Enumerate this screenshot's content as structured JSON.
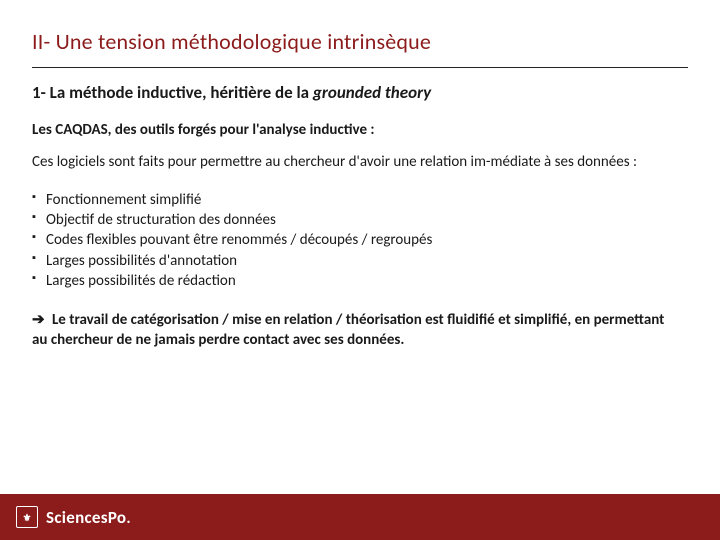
{
  "colors": {
    "accent": "#8c1b1b",
    "text": "#1a1a1a",
    "rule": "#222222",
    "background": "#ffffff",
    "footer_text": "#ffffff"
  },
  "title": "II- Une tension méthodologique intrinsèque",
  "subtitle_prefix": "1- La méthode inductive, héritière de la ",
  "subtitle_italic": "grounded theory",
  "section_label": "Les CAQDAS, des outils forgés pour l'analyse inductive :",
  "paragraph": "Ces logiciels sont faits pour permettre au chercheur d'avoir une relation im-médiate à ses données :",
  "bullets": [
    "Fonctionnement simplifié",
    "Objectif de structuration des données",
    "Codes flexibles pouvant être renommés / découpés / regroupés",
    "Larges possibilités d'annotation",
    "Larges possibilités de rédaction"
  ],
  "conclusion_arrow": "➔",
  "conclusion": " Le travail de catégorisation / mise en relation / théorisation est fluidifié et simplifié, en permettant au chercheur de ne jamais perdre contact avec ses données.",
  "footer": {
    "emblem_text": "⚜",
    "logo_text": "SciencesPo",
    "logo_dot": "."
  }
}
